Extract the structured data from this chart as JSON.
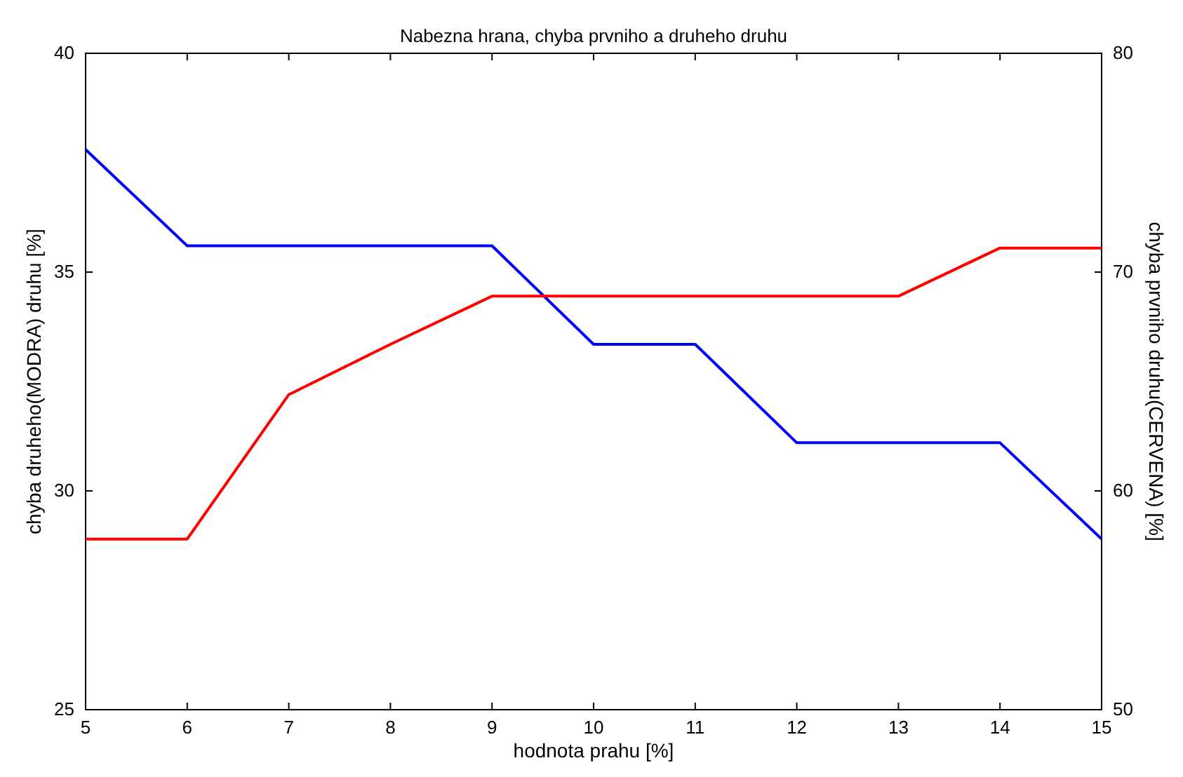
{
  "chart_data": {
    "type": "line",
    "title": "Nabezna hrana, chyba prvniho a druheho druhu",
    "xlabel": "hodnota prahu [%]",
    "ylabel": "chyba druheho(MODRA) druhu [%]",
    "y2label": "chyba prvniho druhu(CERVENA) [%]",
    "x": [
      5,
      6,
      7,
      8,
      9,
      10,
      11,
      12,
      13,
      14,
      15
    ],
    "series": [
      {
        "color": "#0000ff",
        "values": [
          37.8,
          35.6,
          35.6,
          35.6,
          35.6,
          33.35,
          33.35,
          31.1,
          31.1,
          31.1,
          28.9
        ]
      },
      {
        "color": "#ff0000",
        "axis": "y2",
        "values": [
          57.8,
          57.8,
          64.4,
          66.7,
          68.9,
          68.9,
          68.9,
          68.9,
          68.9,
          71.1,
          71.1
        ]
      }
    ],
    "xlim": [
      5,
      15
    ],
    "xticks": [
      5,
      6,
      7,
      8,
      9,
      10,
      11,
      12,
      13,
      14,
      15
    ],
    "ylim": [
      25,
      40
    ],
    "yticks": [
      25,
      30,
      35,
      40
    ],
    "y2lim": [
      50,
      80
    ],
    "y2ticks": [
      50,
      60,
      70,
      80
    ],
    "grid": false,
    "marker": "none",
    "line_style": "solid"
  }
}
